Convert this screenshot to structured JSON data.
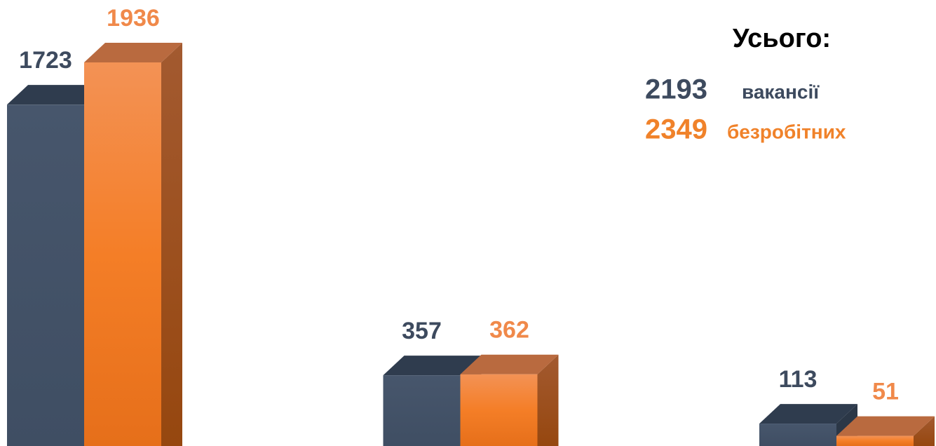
{
  "chart_data": {
    "type": "bar3d",
    "categories": [
      null,
      null,
      null
    ],
    "series": [
      {
        "name": "вакансії",
        "color": "#435369",
        "values": [
          1723,
          357,
          113
        ]
      },
      {
        "name": "безробітних",
        "color": "#f07f2a",
        "values": [
          1936,
          362,
          51
        ]
      }
    ],
    "total_title": "Усього:",
    "totals": [
      2193,
      2349
    ]
  }
}
